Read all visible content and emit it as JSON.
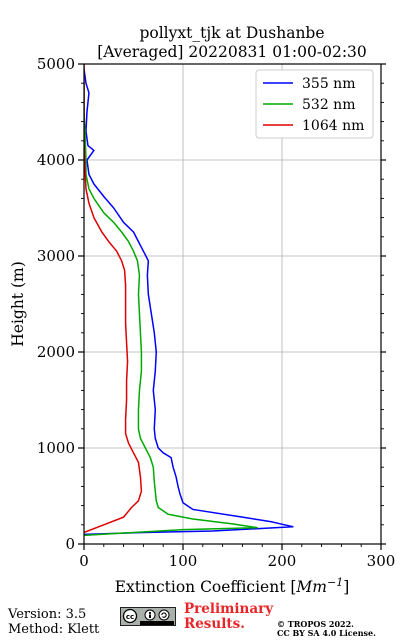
{
  "chart_data": {
    "type": "line",
    "title_line1": "pollyxt_tjk at Dushanbe",
    "title_line2": "[Averaged] 20220831 01:00-02:30",
    "xlabel": "Extinction Coefficient [",
    "xlabel_unit": "Mm",
    "xlabel_exp": "−1",
    "xlabel_end": "]",
    "ylabel": "Height (m)",
    "xlim": [
      0,
      300
    ],
    "ylim": [
      0,
      5000
    ],
    "xticks": [
      "0",
      "100",
      "200",
      "300"
    ],
    "yticks": [
      "0",
      "1000",
      "2000",
      "3000",
      "4000",
      "5000"
    ],
    "grid": true,
    "legend_position": "top-right",
    "series": [
      {
        "name": "355 nm",
        "color": "#0000ff",
        "points": [
          [
            0,
            100
          ],
          [
            60,
            120
          ],
          [
            130,
            135
          ],
          [
            211,
            180
          ],
          [
            190,
            230
          ],
          [
            160,
            280
          ],
          [
            110,
            360
          ],
          [
            100,
            430
          ],
          [
            97,
            520
          ],
          [
            95,
            600
          ],
          [
            93,
            700
          ],
          [
            90,
            800
          ],
          [
            88,
            900
          ],
          [
            80,
            950
          ],
          [
            75,
            1000
          ],
          [
            72,
            1100
          ],
          [
            71,
            1200
          ],
          [
            72,
            1400
          ],
          [
            70,
            1600
          ],
          [
            72,
            1800
          ],
          [
            73,
            2000
          ],
          [
            71,
            2200
          ],
          [
            68,
            2400
          ],
          [
            65,
            2600
          ],
          [
            64,
            2800
          ],
          [
            65,
            2950
          ],
          [
            60,
            3050
          ],
          [
            55,
            3150
          ],
          [
            50,
            3250
          ],
          [
            40,
            3350
          ],
          [
            30,
            3500
          ],
          [
            20,
            3620
          ],
          [
            10,
            3750
          ],
          [
            5,
            3850
          ],
          [
            3,
            4000
          ],
          [
            10,
            4100
          ],
          [
            4,
            4150
          ],
          [
            2,
            4300
          ],
          [
            3,
            4500
          ],
          [
            5,
            4700
          ],
          [
            2,
            4800
          ],
          [
            0,
            4950
          ]
        ]
      },
      {
        "name": "532 nm",
        "color": "#00aa00",
        "points": [
          [
            0,
            90
          ],
          [
            100,
            150
          ],
          [
            175,
            170
          ],
          [
            150,
            210
          ],
          [
            110,
            260
          ],
          [
            85,
            310
          ],
          [
            75,
            380
          ],
          [
            73,
            450
          ],
          [
            72,
            550
          ],
          [
            71,
            650
          ],
          [
            70,
            800
          ],
          [
            67,
            900
          ],
          [
            62,
            1000
          ],
          [
            57,
            1100
          ],
          [
            55,
            1200
          ],
          [
            55,
            1400
          ],
          [
            56,
            1600
          ],
          [
            58,
            1800
          ],
          [
            58,
            2000
          ],
          [
            57,
            2200
          ],
          [
            56,
            2400
          ],
          [
            55,
            2600
          ],
          [
            56,
            2800
          ],
          [
            54,
            2950
          ],
          [
            50,
            3050
          ],
          [
            45,
            3150
          ],
          [
            38,
            3250
          ],
          [
            30,
            3350
          ],
          [
            20,
            3450
          ],
          [
            10,
            3600
          ],
          [
            5,
            3700
          ],
          [
            2,
            3850
          ],
          [
            2,
            4000
          ],
          [
            1,
            4300
          ],
          [
            0,
            4500
          ],
          [
            0,
            4800
          ]
        ]
      },
      {
        "name": "1064 nm",
        "color": "#dd0000",
        "points": [
          [
            0,
            120
          ],
          [
            20,
            200
          ],
          [
            40,
            280
          ],
          [
            48,
            380
          ],
          [
            55,
            450
          ],
          [
            58,
            550
          ],
          [
            57,
            700
          ],
          [
            55,
            850
          ],
          [
            50,
            950
          ],
          [
            45,
            1050
          ],
          [
            42,
            1150
          ],
          [
            42,
            1300
          ],
          [
            43,
            1500
          ],
          [
            43,
            1700
          ],
          [
            44,
            1900
          ],
          [
            43,
            2100
          ],
          [
            42,
            2300
          ],
          [
            42,
            2500
          ],
          [
            42,
            2700
          ],
          [
            41,
            2850
          ],
          [
            38,
            2950
          ],
          [
            33,
            3050
          ],
          [
            25,
            3150
          ],
          [
            18,
            3250
          ],
          [
            10,
            3400
          ],
          [
            5,
            3550
          ],
          [
            2,
            3700
          ],
          [
            1,
            3900
          ],
          [
            0,
            4200
          ],
          [
            0,
            4500
          ],
          [
            0,
            4800
          ],
          [
            0,
            5000
          ]
        ]
      }
    ]
  },
  "footer": {
    "version": "Version: 3.5",
    "method": "Method: Klett",
    "cc_badge": "cc BY SA",
    "preliminary_line1": "Preliminary",
    "preliminary_line2": "Results.",
    "license_line1": "© TROPOS 2022.",
    "license_line2": "CC BY SA 4.0 License."
  }
}
